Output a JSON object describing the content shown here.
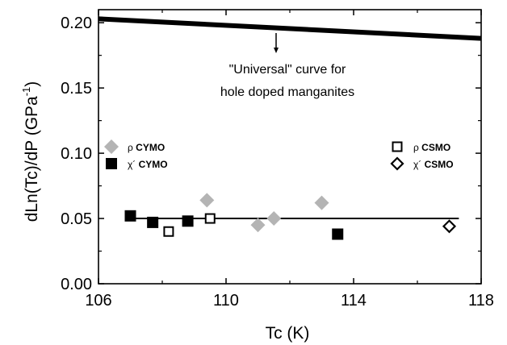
{
  "chart_data": {
    "type": "scatter",
    "xlabel": "Tc (K)",
    "ylabel": "dLn(Tc)/dP (GPa",
    "ylabel_superscript": "-1",
    "ylabel_close": ")",
    "xlim": [
      106,
      118
    ],
    "ylim": [
      0.0,
      0.21
    ],
    "xticks": [
      106,
      110,
      114,
      118
    ],
    "xtick_labels": [
      "106",
      "110",
      "114",
      "118"
    ],
    "yticks": [
      0.0,
      0.05,
      0.1,
      0.15,
      0.2
    ],
    "ytick_labels": [
      "0.00",
      "0.05",
      "0.10",
      "0.15",
      "0.20"
    ],
    "annotation": {
      "lines": [
        "\"Universal\" curve for",
        "hole doped manganites"
      ]
    },
    "universal_curve": {
      "x": [
        106,
        118
      ],
      "y": [
        0.203,
        0.188
      ]
    },
    "fit_line": {
      "x": [
        107,
        117.3
      ],
      "y": [
        0.05,
        0.05
      ]
    },
    "series": [
      {
        "name": "ρ CYMO",
        "symbol_char": "ρ",
        "label": "CYMO",
        "marker": "diamond-filled",
        "color": "#b4b4b4",
        "x": [
          109.4,
          111.0,
          111.5,
          113.0
        ],
        "y": [
          0.064,
          0.045,
          0.05,
          0.062
        ]
      },
      {
        "name": "χ´ CYMO",
        "symbol_char": "χ´",
        "label": "CYMO",
        "marker": "square-filled",
        "color": "#000000",
        "x": [
          107.0,
          107.7,
          108.8,
          113.5
        ],
        "y": [
          0.052,
          0.047,
          0.048,
          0.038
        ]
      },
      {
        "name": "ρ CSMO",
        "symbol_char": "ρ",
        "label": "CSMO",
        "marker": "square-open",
        "color": "#000000",
        "x": [
          108.2,
          109.5
        ],
        "y": [
          0.04,
          0.05
        ]
      },
      {
        "name": "χ´ CSMO",
        "symbol_char": "χ´",
        "label": "CSMO",
        "marker": "diamond-open",
        "color": "#000000",
        "x": [
          117.0
        ],
        "y": [
          0.044
        ]
      }
    ],
    "legend": [
      {
        "series": 0,
        "placement": "left"
      },
      {
        "series": 1,
        "placement": "left"
      },
      {
        "series": 2,
        "placement": "right"
      },
      {
        "series": 3,
        "placement": "right"
      }
    ]
  }
}
